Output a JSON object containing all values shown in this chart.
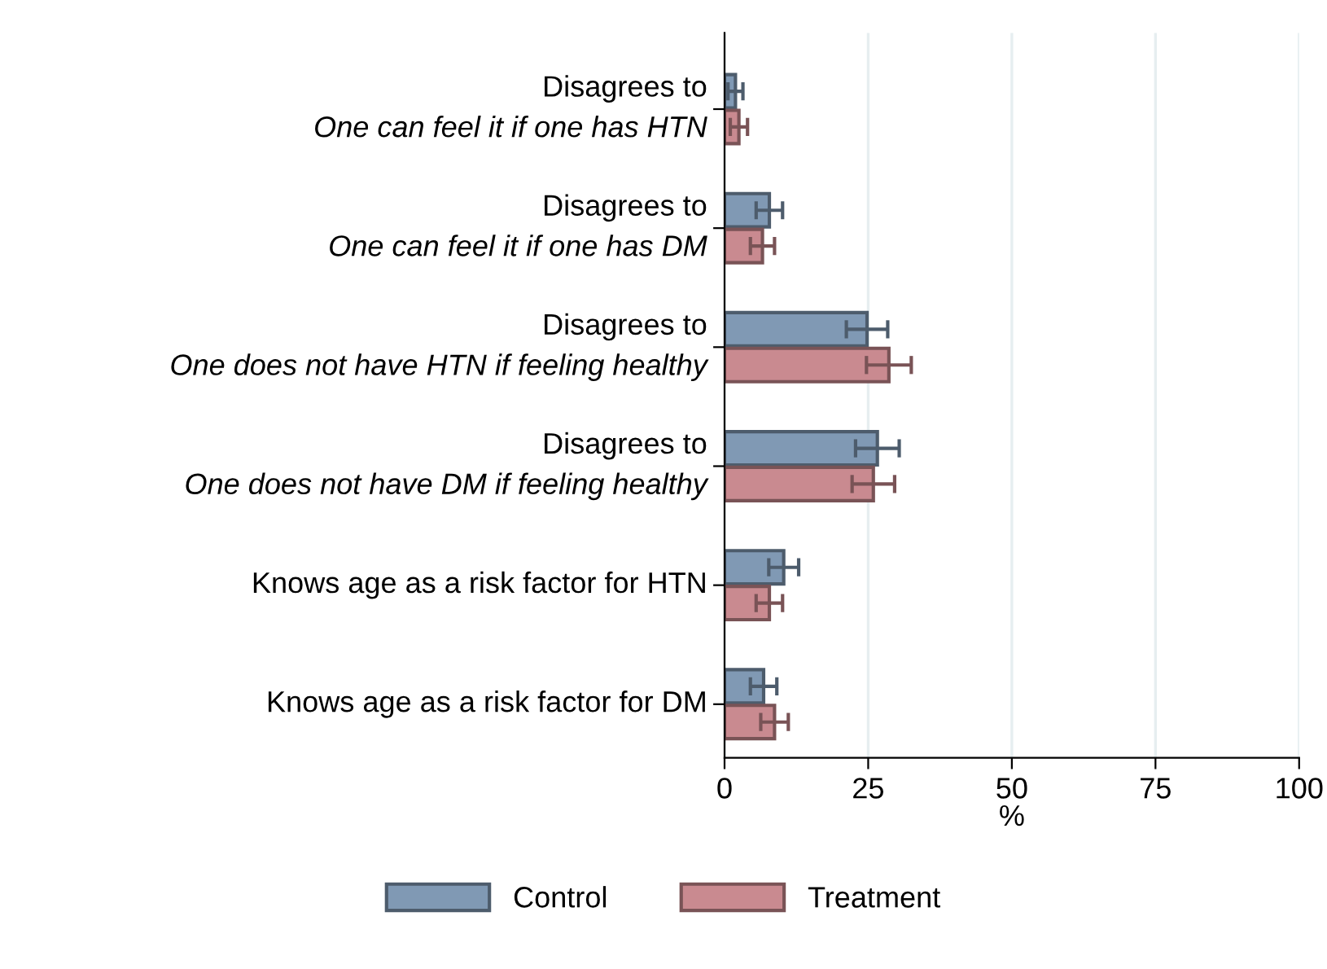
{
  "chart_data": {
    "type": "bar",
    "orientation": "horizontal",
    "xlabel": "%",
    "categories": [
      "Disagrees to\nOne can feel it if one has HTN",
      "Disagrees to\nOne can feel it if one has DM",
      "Disagrees to\nOne does not have HTN if feeling healthy",
      "Disagrees to\nOne does not have DM if feeling healthy",
      "Knows age as a risk factor for HTN",
      "Knows age as a risk factor for DM"
    ],
    "series": [
      {
        "name": "Control",
        "color": "#8099b4",
        "values": [
          1.9,
          7.8,
          24.8,
          26.6,
          10.3,
          6.8
        ],
        "errors": [
          1.3,
          2.3,
          3.6,
          3.8,
          2.6,
          2.3
        ]
      },
      {
        "name": "Treatment",
        "color": "#c98a90",
        "values": [
          2.5,
          6.6,
          28.6,
          25.9,
          7.8,
          8.7
        ],
        "errors": [
          1.5,
          2.1,
          3.9,
          3.7,
          2.3,
          2.4
        ]
      }
    ],
    "xlim": [
      0,
      100
    ],
    "xticks": [
      0,
      25,
      50,
      75,
      100
    ],
    "grid": "x",
    "legend": "bottom"
  }
}
